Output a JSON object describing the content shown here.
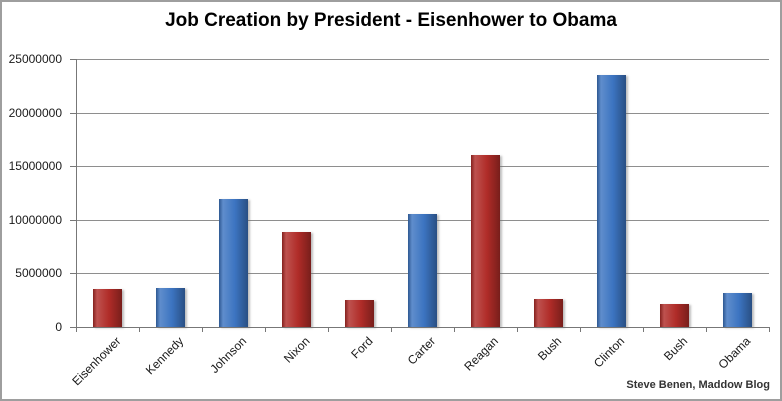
{
  "title": "Job Creation by President - Eisenhower to Obama",
  "attribution": "Steve Benen, Maddow Blog",
  "chart_data": {
    "type": "bar",
    "title": "Job Creation by President - Eisenhower to Obama",
    "categories": [
      "Eisenhower",
      "Kennedy",
      "Johnson",
      "Nixon",
      "Ford",
      "Carter",
      "Reagan",
      "Bush",
      "Clinton",
      "Bush",
      "Obama"
    ],
    "values": [
      3500000,
      3600000,
      11900000,
      8900000,
      2500000,
      10500000,
      16000000,
      2600000,
      23500000,
      2100000,
      3200000
    ],
    "bar_parties": [
      "R",
      "D",
      "D",
      "R",
      "R",
      "D",
      "R",
      "R",
      "D",
      "R",
      "D"
    ],
    "party_colors": {
      "R": "#b02c28",
      "D": "#3c74c1"
    },
    "xlabel": "",
    "ylabel": "",
    "ylim": [
      0,
      25000000
    ],
    "ytick_interval": 5000000,
    "ytick_labels": [
      "0",
      "5000000",
      "10000000",
      "15000000",
      "20000000",
      "25000000"
    ],
    "grid": true,
    "legend": "none",
    "x_label_rotation_deg": -45,
    "gridline_color": "#8e8e8e",
    "axis_color": "#777777",
    "annotation": "Steve Benen, Maddow Blog"
  }
}
